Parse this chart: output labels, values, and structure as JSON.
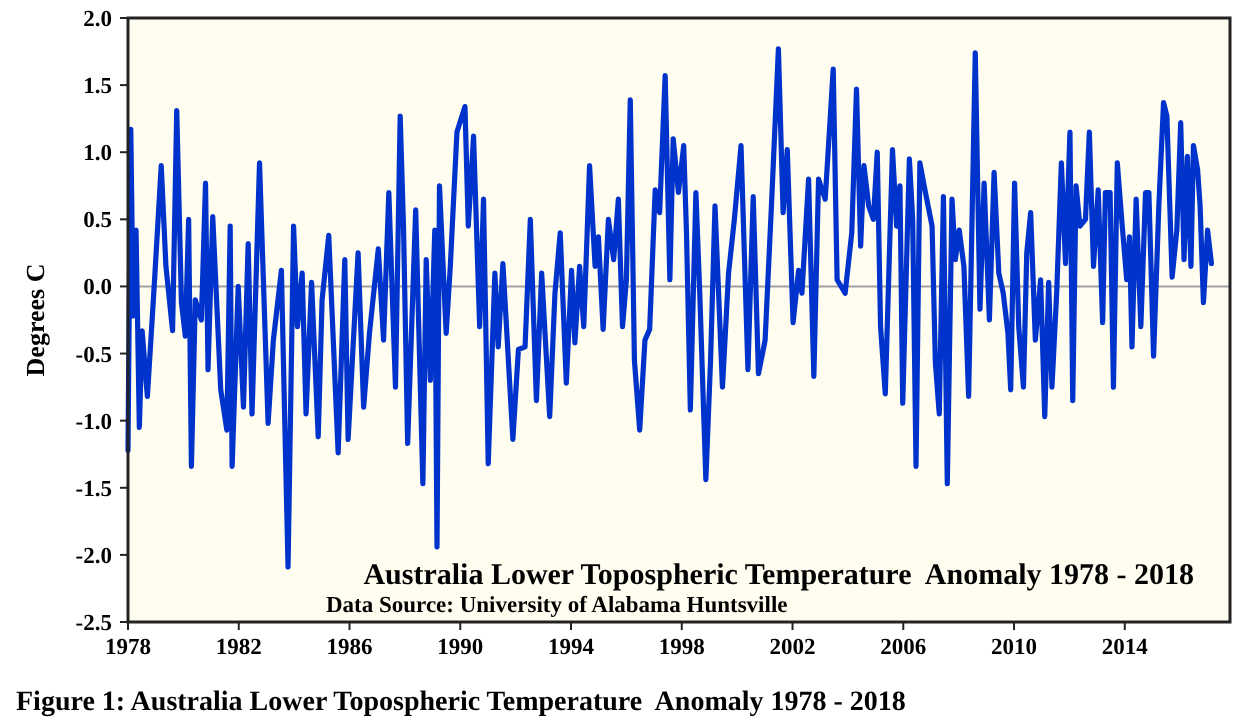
{
  "chart_data": {
    "type": "line",
    "title": "Australia Lower Topospheric Temperature  Anomaly 1978 - 2018",
    "ylabel": "Degrees C",
    "annotations": [
      "Data Source: University of Alabama Huntsville",
      "Figure 1: Australia Lower Topospheric Temperature  Anomaly 1978 - 2018"
    ],
    "xlim": [
      1978,
      2017.8
    ],
    "xticks": [
      1978,
      1982,
      1986,
      1990,
      1994,
      1998,
      2002,
      2006,
      2010,
      2014
    ],
    "ylim": [
      -2.5,
      2.0
    ],
    "yticks": [
      {
        "value": -2.5,
        "label": "-2.5"
      },
      {
        "value": -2,
        "label": "-2.0"
      },
      {
        "value": -1.5,
        "label": "-1.5"
      },
      {
        "value": -1,
        "label": "-1.0"
      },
      {
        "value": -0.5,
        "label": "-0.5"
      },
      {
        "value": 0,
        "label": "0.0"
      },
      {
        "value": 0.5,
        "label": "0.5"
      },
      {
        "value": 1,
        "label": "1.0"
      },
      {
        "value": 1.5,
        "label": "1.5"
      },
      {
        "value": 2,
        "label": "2.0"
      }
    ],
    "ref_lines": [
      {
        "axis": "y",
        "value": 0,
        "color": "#a0a0a0"
      }
    ],
    "grid": false,
    "marker": "none",
    "line_style": "solid",
    "series": [
      {
        "color": "#0033cc",
        "x": [
          1978.0,
          1978.1,
          1978.19,
          1978.29,
          1978.41,
          1978.51,
          1978.7,
          1978.96,
          1979.2,
          1979.37,
          1979.61,
          1979.76,
          1979.93,
          1980.07,
          1980.19,
          1980.29,
          1980.43,
          1980.65,
          1980.8,
          1980.89,
          1981.06,
          1981.35,
          1981.57,
          1981.69,
          1981.76,
          1981.98,
          1982.17,
          1982.34,
          1982.48,
          1982.75,
          1983.06,
          1983.25,
          1983.54,
          1983.78,
          1983.98,
          1984.12,
          1984.29,
          1984.43,
          1984.63,
          1984.87,
          1985.01,
          1985.25,
          1985.59,
          1985.83,
          1985.95,
          1986.31,
          1986.51,
          1986.72,
          1987.04,
          1987.23,
          1987.42,
          1987.66,
          1987.83,
          1987.95,
          1988.1,
          1988.39,
          1988.65,
          1988.77,
          1988.92,
          1989.08,
          1989.16,
          1989.25,
          1989.49,
          1989.64,
          1989.88,
          1990.17,
          1990.29,
          1990.48,
          1990.7,
          1990.84,
          1991.01,
          1991.25,
          1991.37,
          1991.54,
          1991.9,
          1992.1,
          1992.34,
          1992.53,
          1992.75,
          1992.94,
          1993.23,
          1993.42,
          1993.61,
          1993.83,
          1994.02,
          1994.14,
          1994.31,
          1994.46,
          1994.67,
          1994.87,
          1994.99,
          1995.16,
          1995.35,
          1995.54,
          1995.71,
          1995.86,
          1996.0,
          1996.14,
          1996.29,
          1996.48,
          1996.67,
          1996.84,
          1997.04,
          1997.2,
          1997.4,
          1997.57,
          1997.69,
          1997.88,
          1998.07,
          1998.17,
          1998.31,
          1998.51,
          1998.65,
          1998.87,
          1999.04,
          1999.2,
          1999.47,
          1999.69,
          1999.9,
          2000.14,
          2000.39,
          2000.58,
          2000.77,
          2001.01,
          2001.25,
          2001.49,
          2001.66,
          2001.81,
          2002.02,
          2002.22,
          2002.34,
          2002.58,
          2002.77,
          2002.94,
          2003.18,
          2003.47,
          2003.61,
          2003.9,
          2004.14,
          2004.31,
          2004.46,
          2004.58,
          2004.75,
          2004.92,
          2005.06,
          2005.18,
          2005.35,
          2005.61,
          2005.76,
          2005.88,
          2005.98,
          2006.22,
          2006.34,
          2006.46,
          2006.6,
          2006.8,
          2007.04,
          2007.16,
          2007.3,
          2007.45,
          2007.59,
          2007.76,
          2007.88,
          2008.02,
          2008.19,
          2008.36,
          2008.6,
          2008.77,
          2008.92,
          2009.11,
          2009.28,
          2009.45,
          2009.61,
          2009.78,
          2009.88,
          2010.02,
          2010.17,
          2010.34,
          2010.46,
          2010.6,
          2010.77,
          2010.96,
          2011.11,
          2011.25,
          2011.37,
          2011.54,
          2011.71,
          2011.86,
          2012.02,
          2012.12,
          2012.24,
          2012.38,
          2012.58,
          2012.72,
          2012.87,
          2013.04,
          2013.2,
          2013.3,
          2013.47,
          2013.59,
          2013.73,
          2013.9,
          2014.07,
          2014.17,
          2014.26,
          2014.41,
          2014.58,
          2014.75,
          2014.87,
          2015.04,
          2015.23,
          2015.4,
          2015.52,
          2015.71,
          2015.88,
          2016.02,
          2016.14,
          2016.26,
          2016.39,
          2016.48,
          2016.63,
          2016.72,
          2016.84,
          2016.99,
          2017.13
        ],
        "values": [
          -1.22,
          1.17,
          -0.22,
          0.42,
          -1.05,
          -0.33,
          -0.82,
          0.05,
          0.9,
          0.15,
          -0.33,
          1.31,
          -0.12,
          -0.37,
          0.5,
          -1.34,
          -0.1,
          -0.25,
          0.77,
          -0.62,
          0.52,
          -0.77,
          -1.07,
          0.45,
          -1.34,
          0.0,
          -0.9,
          0.32,
          -0.95,
          0.92,
          -1.02,
          -0.4,
          0.12,
          -2.09,
          0.45,
          -0.3,
          0.1,
          -0.95,
          0.03,
          -1.12,
          -0.1,
          0.38,
          -1.24,
          0.2,
          -1.14,
          0.25,
          -0.9,
          -0.35,
          0.28,
          -0.4,
          0.7,
          -0.75,
          1.27,
          0.45,
          -1.17,
          0.57,
          -1.47,
          0.2,
          -0.7,
          0.42,
          -1.94,
          0.75,
          -0.35,
          0.15,
          1.15,
          1.34,
          0.45,
          1.12,
          -0.3,
          0.65,
          -1.32,
          0.1,
          -0.45,
          0.17,
          -1.14,
          -0.47,
          -0.45,
          0.5,
          -0.85,
          0.1,
          -0.97,
          -0.05,
          0.4,
          -0.72,
          0.12,
          -0.42,
          0.15,
          -0.3,
          0.9,
          0.15,
          0.37,
          -0.32,
          0.5,
          0.2,
          0.65,
          -0.3,
          0.05,
          1.39,
          -0.55,
          -1.07,
          -0.4,
          -0.32,
          0.72,
          0.55,
          1.57,
          0.05,
          1.1,
          0.7,
          1.05,
          0.4,
          -0.92,
          0.7,
          -0.05,
          -1.44,
          -0.55,
          0.6,
          -0.75,
          0.1,
          0.5,
          1.05,
          -0.62,
          0.67,
          -0.65,
          -0.4,
          0.65,
          1.77,
          0.55,
          1.02,
          -0.27,
          0.12,
          -0.05,
          0.8,
          -0.67,
          0.8,
          0.65,
          1.62,
          0.05,
          -0.05,
          0.4,
          1.47,
          0.3,
          0.9,
          0.6,
          0.5,
          1.0,
          -0.3,
          -0.8,
          1.02,
          0.45,
          0.75,
          -0.87,
          0.95,
          0.5,
          -1.34,
          0.92,
          0.7,
          0.45,
          -0.57,
          -0.95,
          0.67,
          -1.47,
          0.65,
          0.2,
          0.42,
          0.15,
          -0.82,
          1.74,
          -0.17,
          0.77,
          -0.25,
          0.85,
          0.1,
          -0.05,
          -0.35,
          -0.77,
          0.77,
          -0.3,
          -0.75,
          0.25,
          0.55,
          -0.4,
          0.05,
          -0.97,
          0.03,
          -0.75,
          -0.05,
          0.92,
          0.17,
          1.15,
          -0.85,
          0.75,
          0.45,
          0.5,
          1.15,
          0.15,
          0.72,
          -0.27,
          0.7,
          0.7,
          -0.75,
          0.92,
          0.47,
          0.05,
          0.37,
          -0.45,
          0.65,
          -0.3,
          0.7,
          0.7,
          -0.52,
          0.6,
          1.37,
          1.27,
          0.07,
          0.42,
          1.22,
          0.2,
          0.97,
          0.15,
          1.05,
          0.87,
          0.6,
          -0.12,
          0.42,
          0.17
        ]
      }
    ]
  }
}
